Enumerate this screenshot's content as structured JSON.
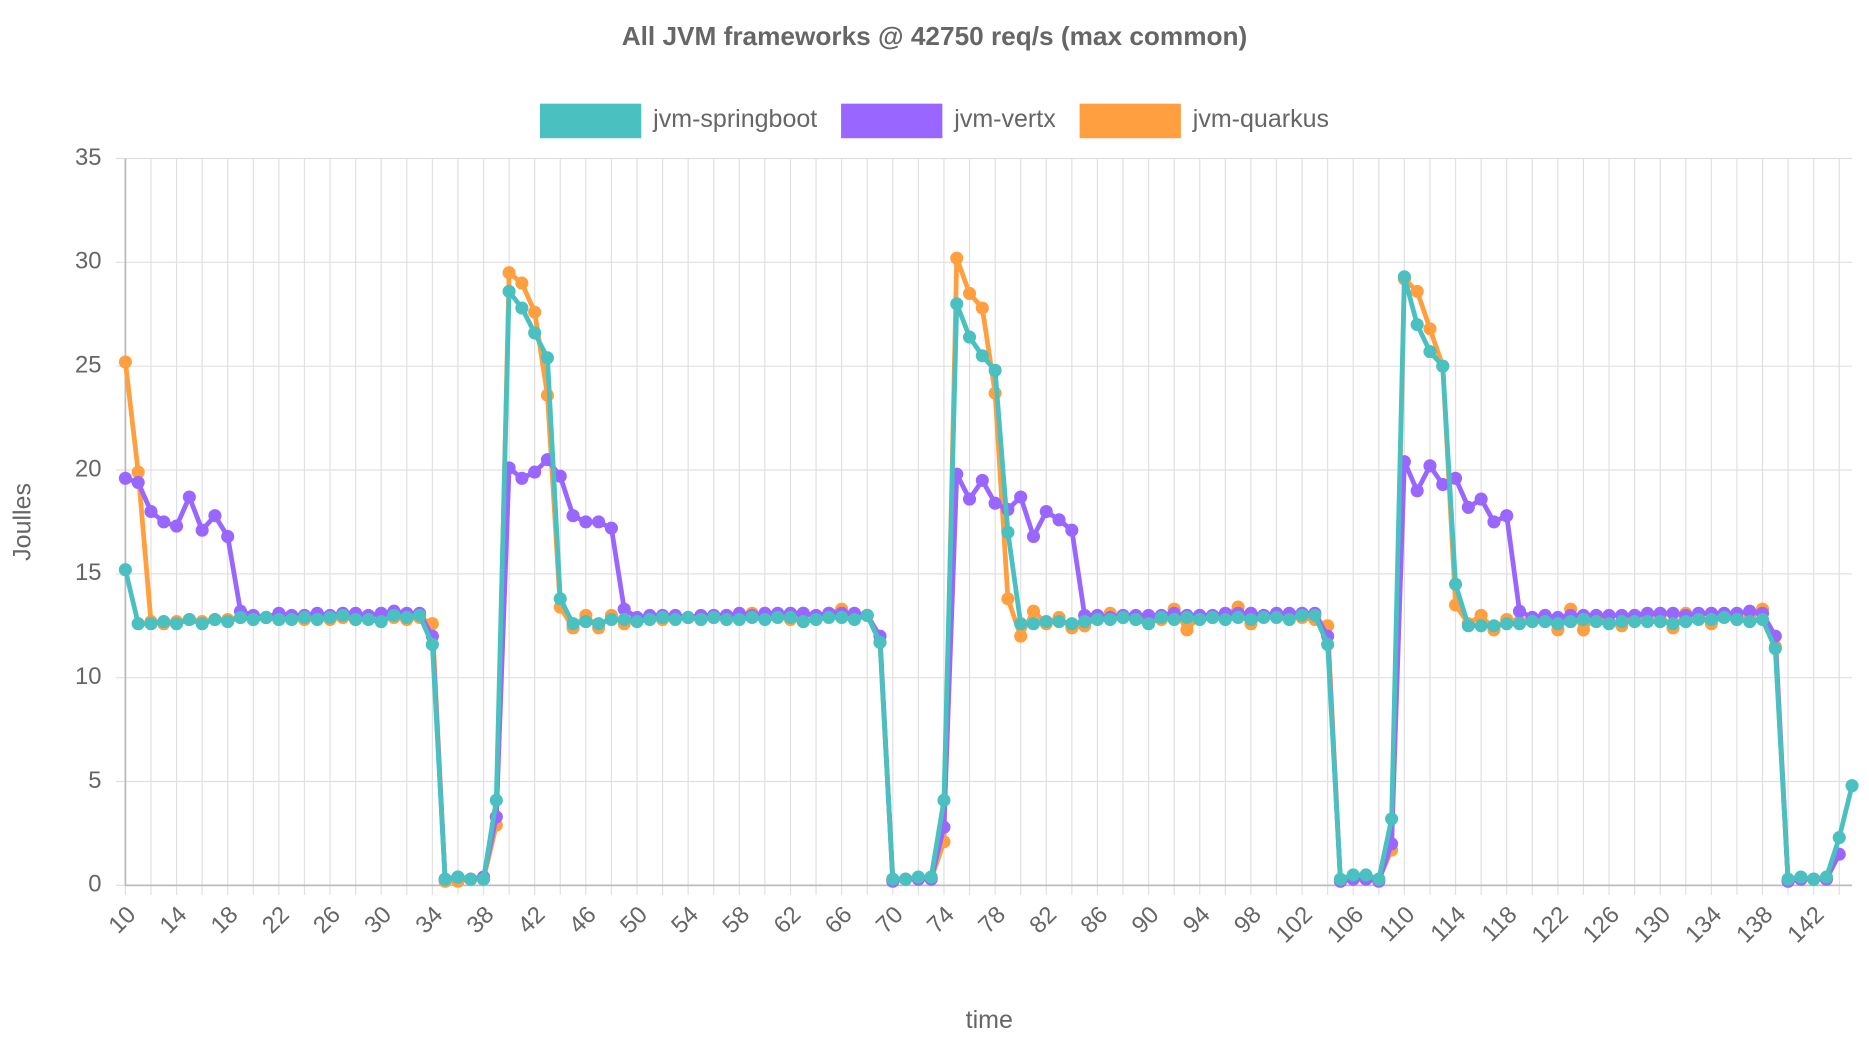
{
  "chart_data": {
    "type": "line",
    "title": "All JVM frameworks @ 42750 req/s (max common)",
    "x_label": "time",
    "y_label": "Joulles",
    "legend": "top",
    "grid": true,
    "ylim": [
      0,
      35
    ],
    "yticks": [
      0,
      5,
      10,
      15,
      20,
      25,
      30,
      35
    ],
    "categories": [
      10,
      11,
      12,
      13,
      14,
      15,
      16,
      17,
      18,
      19,
      20,
      21,
      22,
      23,
      24,
      25,
      26,
      27,
      28,
      29,
      30,
      31,
      32,
      33,
      34,
      35,
      36,
      37,
      38,
      39,
      40,
      41,
      42,
      43,
      44,
      45,
      46,
      47,
      48,
      49,
      50,
      51,
      52,
      53,
      54,
      55,
      56,
      57,
      58,
      59,
      60,
      61,
      62,
      63,
      64,
      65,
      66,
      67,
      68,
      69,
      70,
      71,
      72,
      73,
      74,
      75,
      76,
      77,
      78,
      79,
      80,
      81,
      82,
      83,
      84,
      85,
      86,
      87,
      88,
      89,
      90,
      91,
      92,
      93,
      94,
      95,
      96,
      97,
      98,
      99,
      100,
      101,
      102,
      103,
      104,
      105,
      106,
      107,
      108,
      109,
      110,
      111,
      112,
      113,
      114,
      115,
      116,
      117,
      118,
      119,
      120,
      121,
      122,
      123,
      124,
      125,
      126,
      127,
      128,
      129,
      130,
      131,
      132,
      133,
      134,
      135,
      136,
      137,
      138,
      139,
      140,
      141,
      142,
      143,
      144,
      145
    ],
    "series": [
      {
        "name": "jvm-springboot",
        "color": "#4bc0c0",
        "values": [
          15.2,
          12.6,
          12.6,
          12.7,
          12.6,
          12.8,
          12.6,
          12.8,
          12.7,
          12.9,
          12.8,
          12.9,
          12.8,
          12.8,
          12.9,
          12.8,
          12.9,
          13.0,
          12.8,
          12.8,
          12.7,
          13.0,
          12.9,
          13.0,
          11.6,
          0.3,
          0.4,
          0.3,
          0.3,
          4.1,
          28.6,
          27.8,
          26.6,
          25.4,
          13.8,
          12.6,
          12.7,
          12.6,
          12.8,
          12.8,
          12.7,
          12.8,
          12.9,
          12.8,
          12.9,
          12.8,
          12.9,
          12.8,
          12.8,
          12.9,
          12.8,
          12.9,
          12.9,
          12.7,
          12.8,
          12.9,
          12.9,
          12.8,
          13.0,
          11.7,
          0.3,
          0.3,
          0.4,
          0.4,
          4.1,
          28.0,
          26.4,
          25.5,
          24.8,
          17.0,
          12.6,
          12.6,
          12.7,
          12.7,
          12.6,
          12.7,
          12.8,
          12.8,
          12.9,
          12.8,
          12.6,
          12.9,
          12.8,
          12.9,
          12.8,
          12.9,
          12.8,
          12.9,
          12.8,
          12.9,
          12.9,
          12.8,
          13.0,
          13.0,
          11.6,
          0.3,
          0.5,
          0.5,
          0.3,
          3.2,
          29.3,
          27.0,
          25.7,
          25.0,
          14.5,
          12.5,
          12.5,
          12.5,
          12.6,
          12.6,
          12.7,
          12.7,
          12.6,
          12.7,
          12.8,
          12.7,
          12.6,
          12.7,
          12.7,
          12.7,
          12.7,
          12.6,
          12.7,
          12.8,
          12.8,
          12.9,
          12.8,
          12.7,
          12.8,
          11.4,
          0.3,
          0.4,
          0.3,
          0.4,
          2.3,
          4.8
        ]
      },
      {
        "name": "jvm-vertx",
        "color": "#9966ff",
        "values": [
          19.6,
          19.4,
          18.0,
          17.5,
          17.3,
          18.7,
          17.1,
          17.8,
          16.8,
          13.2,
          13.0,
          12.9,
          13.1,
          13.0,
          13.0,
          13.1,
          13.0,
          13.1,
          13.1,
          13.0,
          13.1,
          13.2,
          13.1,
          13.1,
          12.0,
          0.3,
          0.4,
          0.3,
          0.4,
          3.3,
          20.1,
          19.6,
          19.9,
          20.5,
          19.7,
          17.8,
          17.5,
          17.5,
          17.2,
          13.3,
          12.9,
          13.0,
          13.0,
          13.0,
          12.9,
          13.0,
          13.0,
          13.0,
          13.1,
          13.0,
          13.1,
          13.1,
          13.1,
          13.1,
          13.0,
          13.1,
          13.1,
          13.1,
          13.0,
          12.0,
          0.2,
          0.3,
          0.3,
          0.3,
          2.8,
          19.8,
          18.6,
          19.5,
          18.4,
          18.1,
          18.7,
          16.8,
          18.0,
          17.6,
          17.1,
          13.0,
          13.0,
          12.9,
          13.0,
          13.0,
          13.0,
          13.0,
          13.1,
          13.0,
          13.0,
          13.0,
          13.1,
          13.1,
          13.1,
          13.0,
          13.1,
          13.1,
          13.1,
          13.1,
          12.0,
          0.2,
          0.3,
          0.3,
          0.2,
          2.0,
          20.4,
          19.0,
          20.2,
          19.3,
          19.6,
          18.2,
          18.6,
          17.5,
          17.8,
          13.2,
          12.9,
          13.0,
          12.9,
          13.0,
          13.0,
          13.0,
          13.0,
          13.0,
          13.0,
          13.1,
          13.1,
          13.1,
          13.0,
          13.1,
          13.1,
          13.1,
          13.1,
          13.2,
          13.1,
          12.0,
          0.2,
          0.3,
          0.3,
          0.3,
          1.5,
          null
        ]
      },
      {
        "name": "jvm-quarkus",
        "color": "#ff9f40",
        "values": [
          25.2,
          19.9,
          12.7,
          12.6,
          12.7,
          12.8,
          12.7,
          12.8,
          12.8,
          12.9,
          12.8,
          12.9,
          12.8,
          12.9,
          12.8,
          12.9,
          12.8,
          12.9,
          12.8,
          12.9,
          12.9,
          12.9,
          12.8,
          12.9,
          12.6,
          0.2,
          0.2,
          0.3,
          0.3,
          2.9,
          29.5,
          29.0,
          27.6,
          23.6,
          13.4,
          12.4,
          13.0,
          12.4,
          13.0,
          12.6,
          12.8,
          12.9,
          12.8,
          12.9,
          12.9,
          12.8,
          12.9,
          13.0,
          12.9,
          13.1,
          12.9,
          13.0,
          12.8,
          13.1,
          12.9,
          13.1,
          13.3,
          12.9,
          13.0,
          11.7,
          0.3,
          0.3,
          0.3,
          0.3,
          2.1,
          30.2,
          28.5,
          27.8,
          23.7,
          13.8,
          12.0,
          13.2,
          12.6,
          12.9,
          12.4,
          12.5,
          12.9,
          13.1,
          12.9,
          12.8,
          12.9,
          12.8,
          13.3,
          12.3,
          13.0,
          12.9,
          13.0,
          13.4,
          12.6,
          13.0,
          13.0,
          12.9,
          12.9,
          12.8,
          12.5,
          0.2,
          0.3,
          0.3,
          0.3,
          1.7,
          29.2,
          28.6,
          26.8,
          25.0,
          13.5,
          12.6,
          13.0,
          12.3,
          12.8,
          12.7,
          12.9,
          13.0,
          12.3,
          13.3,
          12.3,
          13.0,
          12.7,
          12.5,
          13.0,
          12.9,
          13.0,
          12.4,
          13.1,
          13.0,
          12.6,
          13.0,
          12.8,
          12.9,
          13.3,
          11.5,
          0.2,
          0.3,
          0.3,
          0.3,
          null,
          null
        ]
      }
    ]
  }
}
